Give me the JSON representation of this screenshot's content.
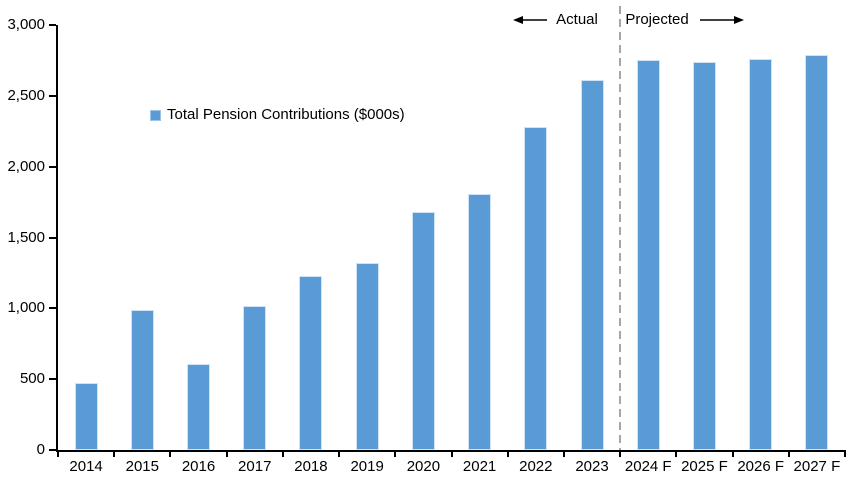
{
  "chart_data": {
    "type": "bar",
    "title": "",
    "xlabel": "",
    "ylabel": "",
    "categories": [
      "2014",
      "2015",
      "2016",
      "2017",
      "2018",
      "2019",
      "2020",
      "2021",
      "2022",
      "2023",
      "2024 F",
      "2025 F",
      "2026 F",
      "2027 F"
    ],
    "series": [
      {
        "name": "Total Pension Contributions ($000s)",
        "values": [
          470,
          990,
          610,
          1020,
          1230,
          1320,
          1680,
          1810,
          2280,
          2610,
          2750,
          2740,
          2760,
          2790
        ]
      }
    ],
    "ylim": [
      0,
      3000
    ],
    "ytick_step": 500,
    "ytick_labels": [
      "0",
      "500",
      "1,000",
      "1,500",
      "2,000",
      "2,500",
      "3,000"
    ],
    "grid": false,
    "legend": {
      "label": "Total Pension Contributions ($000s)",
      "position": "inside-upper-left",
      "marker": "square-icon",
      "marker_color": "#5b9bd5"
    },
    "divider": {
      "between": [
        "2023",
        "2024 F"
      ],
      "style": "dashed",
      "color": "#a6a6a6"
    },
    "annotations": {
      "actual_label": "Actual",
      "projected_label": "Projected",
      "actual_arrow": "left-arrow-icon",
      "projected_arrow": "right-arrow-icon"
    },
    "colors": {
      "bar": "#5b9bd5",
      "bar_edge": "#cfe3f5",
      "axis": "#000000",
      "text": "#000000",
      "background": "#ffffff"
    }
  }
}
